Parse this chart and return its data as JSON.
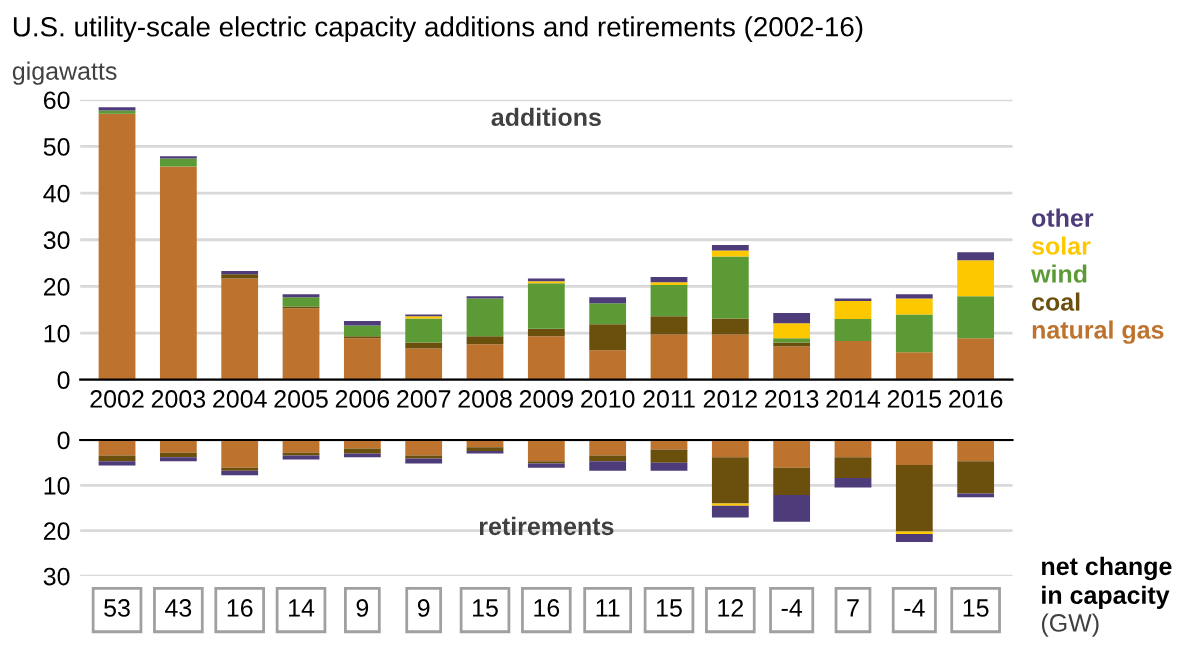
{
  "chart_data": [
    {
      "type": "bar",
      "title": "U.S. utility-scale electric capacity additions and retirements (2002-16)",
      "ylabel": "gigawatts",
      "stacked": true,
      "legend": "right",
      "grid": "y",
      "ylim": [
        0,
        60
      ],
      "yticks": [
        0,
        10,
        20,
        30,
        40,
        50,
        60
      ],
      "categories": [
        "2002",
        "2003",
        "2004",
        "2005",
        "2006",
        "2007",
        "2008",
        "2009",
        "2010",
        "2011",
        "2012",
        "2013",
        "2014",
        "2015",
        "2016"
      ],
      "series": [
        {
          "name": "natural gas",
          "color": "#bd732e",
          "values": [
            57,
            45.7,
            21.7,
            15.3,
            8.9,
            6.7,
            7.6,
            9.3,
            6.3,
            9.7,
            9.7,
            7.1,
            8.3,
            5.9,
            8.9
          ]
        },
        {
          "name": "coal",
          "color": "#6b4f0c",
          "values": [
            0,
            0,
            0.9,
            0.4,
            0.4,
            1.3,
            1.7,
            1.6,
            5.6,
            3.9,
            3.4,
            0.9,
            0,
            0,
            0
          ]
        },
        {
          "name": "wind",
          "color": "#5b9a35",
          "values": [
            0.7,
            1.7,
            0,
            2.0,
            2.3,
            5.1,
            8.1,
            9.8,
            4.5,
            6.7,
            13.3,
            0.9,
            4.7,
            8.1,
            9.0
          ]
        },
        {
          "name": "solar",
          "color": "#fec800",
          "values": [
            0,
            0,
            0,
            0,
            0,
            0.5,
            0,
            0.4,
            0,
            0.6,
            1.3,
            3.2,
            3.9,
            3.4,
            7.7
          ]
        },
        {
          "name": "other",
          "color": "#4e3b7a",
          "values": [
            0.7,
            0.5,
            0.7,
            0.6,
            1.0,
            0.4,
            0.5,
            0.6,
            1.3,
            1.1,
            1.2,
            2.2,
            0.5,
            0.9,
            1.7
          ]
        }
      ],
      "annotations": [
        "additions"
      ]
    },
    {
      "type": "bar",
      "stacked": true,
      "grid": "y",
      "ylim": [
        30,
        0
      ],
      "yticks": [
        0,
        10,
        20,
        30
      ],
      "tick_labels": "y",
      "categories": [
        "2002",
        "2003",
        "2004",
        "2005",
        "2006",
        "2007",
        "2008",
        "2009",
        "2010",
        "2011",
        "2012",
        "2013",
        "2014",
        "2015",
        "2016"
      ],
      "series": [
        {
          "color": "#bd732e",
          "values": [
            3.4,
            2.8,
            6.1,
            2.8,
            1.9,
            3.4,
            1.6,
            4.7,
            3.4,
            2.1,
            3.8,
            6.1,
            3.8,
            5.5,
            4.7
          ]
        },
        {
          "color": "#6b4f0c",
          "values": [
            1.3,
            1.0,
            0.7,
            0.6,
            1.1,
            0.7,
            0.8,
            0.5,
            1.3,
            2.9,
            10.2,
            6.0,
            4.6,
            14.7,
            7.1
          ]
        },
        {
          "color": "#fec800",
          "values": [
            0,
            0,
            0,
            0,
            0,
            0,
            0,
            0,
            0,
            0,
            0.5,
            0,
            0,
            0.5,
            0
          ]
        },
        {
          "color": "#4e3b7a",
          "values": [
            0.9,
            0.9,
            1.0,
            0.9,
            0.8,
            1.1,
            0.6,
            0.9,
            2.1,
            1.8,
            2.6,
            5.9,
            2.1,
            1.8,
            0.8
          ]
        }
      ],
      "annotations": [
        "retirements",
        "53",
        "43",
        "16",
        "14",
        "9",
        "9",
        "15",
        "16",
        "11",
        "15",
        "12",
        "-4",
        "7",
        "-4",
        "15",
        "net change\nin capacity",
        "(GW)"
      ]
    }
  ]
}
